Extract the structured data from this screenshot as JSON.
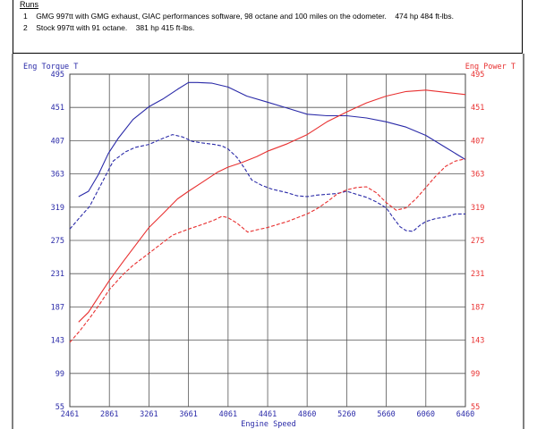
{
  "runs": {
    "title": "Runs",
    "items": [
      {
        "num": "1",
        "desc": "GMG 997tt with GMG exhaust, GIAC performances software, 98 octane and 100 miles on the odometer.",
        "result": "474 hp 484 ft-lbs."
      },
      {
        "num": "2",
        "desc": "Stock 997tt with 91 octane.",
        "result": "381 hp 415 ft-lbs."
      }
    ]
  },
  "colors": {
    "torque": "#2a2aa8",
    "power": "#e83030",
    "axis_left": "#2a2aa8",
    "axis_right": "#e83030",
    "axis_x": "#2a2aa8",
    "grid": "#555555"
  },
  "chart_data": {
    "type": "line",
    "title": "",
    "xlabel": "Engine Speed",
    "ylabel_left": "Eng Torque T",
    "ylabel_right": "Eng Power T",
    "xlim": [
      2461,
      6460
    ],
    "ylim": [
      55,
      495
    ],
    "x_ticks": [
      "2461",
      "2861",
      "3261",
      "3661",
      "4061",
      "4461",
      "4860",
      "5260",
      "5660",
      "6060",
      "6460"
    ],
    "y_ticks": [
      "495",
      "451",
      "407",
      "363",
      "319",
      "275",
      "231",
      "187",
      "143",
      "99",
      "55"
    ],
    "grid": true,
    "series": [
      {
        "key": "torque-run1",
        "axis": "left",
        "style": "solid",
        "color": "#2a2aa8",
        "points": [
          [
            2550,
            333
          ],
          [
            2650,
            340
          ],
          [
            2750,
            362
          ],
          [
            2850,
            390
          ],
          [
            2950,
            410
          ],
          [
            3100,
            435
          ],
          [
            3261,
            452
          ],
          [
            3400,
            462
          ],
          [
            3550,
            475
          ],
          [
            3661,
            484
          ],
          [
            3750,
            484
          ],
          [
            3900,
            483
          ],
          [
            4061,
            478
          ],
          [
            4250,
            466
          ],
          [
            4460,
            458
          ],
          [
            4660,
            450
          ],
          [
            4860,
            442
          ],
          [
            5060,
            440
          ],
          [
            5260,
            440
          ],
          [
            5460,
            437
          ],
          [
            5660,
            432
          ],
          [
            5860,
            425
          ],
          [
            6060,
            414
          ],
          [
            6260,
            398
          ],
          [
            6460,
            382
          ]
        ]
      },
      {
        "key": "power-run1",
        "axis": "right",
        "style": "solid",
        "color": "#e83030",
        "points": [
          [
            2550,
            167
          ],
          [
            2650,
            180
          ],
          [
            2750,
            200
          ],
          [
            2861,
            222
          ],
          [
            3000,
            247
          ],
          [
            3150,
            273
          ],
          [
            3261,
            292
          ],
          [
            3400,
            310
          ],
          [
            3550,
            330
          ],
          [
            3661,
            340
          ],
          [
            3800,
            352
          ],
          [
            3950,
            365
          ],
          [
            4061,
            372
          ],
          [
            4200,
            378
          ],
          [
            4350,
            386
          ],
          [
            4460,
            393
          ],
          [
            4660,
            403
          ],
          [
            4860,
            415
          ],
          [
            5060,
            432
          ],
          [
            5260,
            445
          ],
          [
            5460,
            457
          ],
          [
            5660,
            466
          ],
          [
            5860,
            472
          ],
          [
            6060,
            474
          ],
          [
            6260,
            471
          ],
          [
            6460,
            468
          ]
        ]
      },
      {
        "key": "torque-run2",
        "axis": "left",
        "style": "dashed",
        "color": "#2a2aa8",
        "points": [
          [
            2461,
            290
          ],
          [
            2560,
            305
          ],
          [
            2661,
            320
          ],
          [
            2780,
            350
          ],
          [
            2900,
            380
          ],
          [
            3020,
            392
          ],
          [
            3120,
            398
          ],
          [
            3261,
            402
          ],
          [
            3400,
            410
          ],
          [
            3500,
            415
          ],
          [
            3600,
            412
          ],
          [
            3700,
            406
          ],
          [
            3800,
            404
          ],
          [
            3920,
            402
          ],
          [
            4000,
            400
          ],
          [
            4061,
            396
          ],
          [
            4150,
            385
          ],
          [
            4230,
            370
          ],
          [
            4300,
            355
          ],
          [
            4400,
            348
          ],
          [
            4500,
            343
          ],
          [
            4660,
            338
          ],
          [
            4760,
            334
          ],
          [
            4860,
            333
          ],
          [
            4960,
            335
          ],
          [
            5060,
            336
          ],
          [
            5160,
            337
          ],
          [
            5260,
            340
          ],
          [
            5360,
            336
          ],
          [
            5460,
            332
          ],
          [
            5560,
            326
          ],
          [
            5660,
            318
          ],
          [
            5730,
            305
          ],
          [
            5800,
            293
          ],
          [
            5860,
            288
          ],
          [
            5930,
            287
          ],
          [
            6000,
            295
          ],
          [
            6060,
            300
          ],
          [
            6160,
            304
          ],
          [
            6260,
            306
          ],
          [
            6360,
            310
          ],
          [
            6460,
            310
          ]
        ]
      },
      {
        "key": "power-run2",
        "axis": "right",
        "style": "dashed",
        "color": "#e83030",
        "points": [
          [
            2461,
            140
          ],
          [
            2560,
            155
          ],
          [
            2661,
            172
          ],
          [
            2760,
            190
          ],
          [
            2861,
            210
          ],
          [
            3000,
            230
          ],
          [
            3100,
            242
          ],
          [
            3261,
            258
          ],
          [
            3400,
            272
          ],
          [
            3500,
            282
          ],
          [
            3661,
            290
          ],
          [
            3800,
            296
          ],
          [
            3920,
            302
          ],
          [
            4000,
            307
          ],
          [
            4061,
            305
          ],
          [
            4150,
            298
          ],
          [
            4260,
            286
          ],
          [
            4350,
            289
          ],
          [
            4460,
            292
          ],
          [
            4560,
            296
          ],
          [
            4660,
            300
          ],
          [
            4760,
            305
          ],
          [
            4860,
            310
          ],
          [
            4960,
            317
          ],
          [
            5060,
            326
          ],
          [
            5160,
            336
          ],
          [
            5260,
            342
          ],
          [
            5360,
            345
          ],
          [
            5460,
            346
          ],
          [
            5560,
            338
          ],
          [
            5660,
            325
          ],
          [
            5760,
            315
          ],
          [
            5860,
            318
          ],
          [
            5960,
            330
          ],
          [
            6060,
            345
          ],
          [
            6160,
            360
          ],
          [
            6260,
            373
          ],
          [
            6360,
            380
          ],
          [
            6460,
            383
          ]
        ]
      }
    ]
  }
}
